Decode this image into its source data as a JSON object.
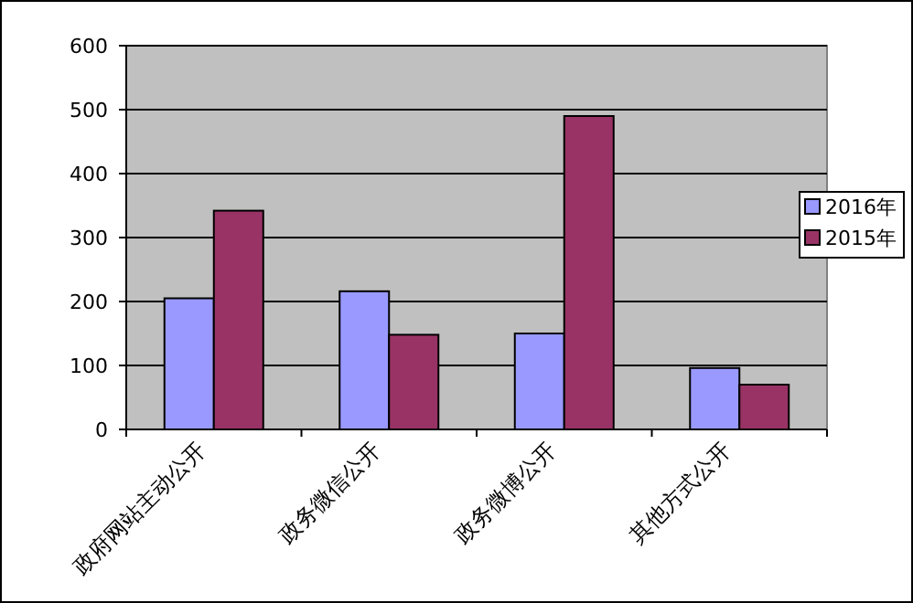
{
  "chart_data": {
    "type": "bar",
    "categories": [
      "政府网站主动公开",
      "政务微信公开",
      "政务微博公开",
      "其他方式公开"
    ],
    "series": [
      {
        "name": "2016年",
        "color": "#9999ff",
        "values": [
          205,
          216,
          150,
          96
        ]
      },
      {
        "name": "2015年",
        "color": "#993366",
        "values": [
          342,
          148,
          490,
          70
        ]
      }
    ],
    "ylim": [
      0,
      600
    ],
    "yticks": [
      0,
      100,
      200,
      300,
      400,
      500,
      600
    ],
    "grid": "y",
    "legend": "right"
  }
}
